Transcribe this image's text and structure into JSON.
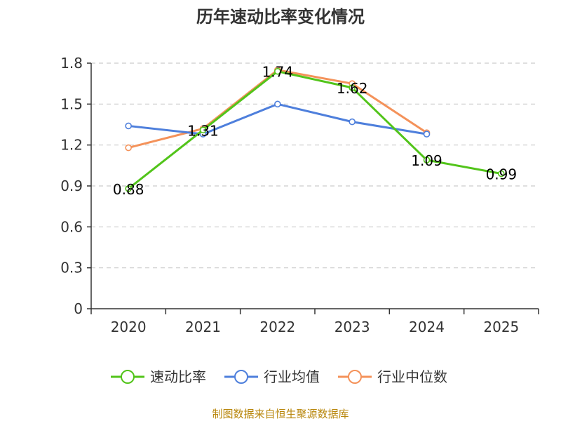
{
  "chart_data": {
    "type": "line",
    "title": "历年速动比率变化情况",
    "categories": [
      "2020",
      "2021",
      "2022",
      "2023",
      "2024",
      "2025"
    ],
    "y_ticks": [
      "0",
      "0.3",
      "0.6",
      "0.9",
      "1.2",
      "1.5",
      "1.8"
    ],
    "ylim": [
      0,
      1.8
    ],
    "grid": true,
    "legend_position": "bottom",
    "series": [
      {
        "name": "速动比率",
        "color": "#52c41a",
        "values": [
          0.88,
          1.31,
          1.74,
          1.62,
          1.09,
          0.99
        ],
        "labels": [
          "0.88",
          "1.31",
          "1.74",
          "1.62",
          "1.09",
          "0.99"
        ]
      },
      {
        "name": "行业均值",
        "color": "#4e7fdc",
        "values": [
          1.34,
          1.28,
          1.5,
          1.37,
          1.28,
          null
        ]
      },
      {
        "name": "行业中位数",
        "color": "#f4925a",
        "values": [
          1.18,
          1.32,
          1.75,
          1.65,
          1.29,
          null
        ]
      }
    ]
  },
  "source_text": "制图数据来自恒生聚源数据库"
}
